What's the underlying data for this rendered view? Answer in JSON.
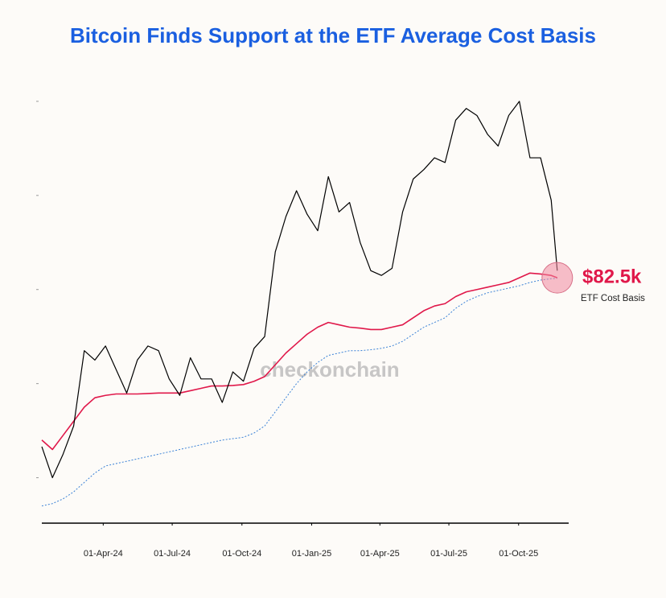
{
  "chart_data": {
    "type": "line",
    "title": "Bitcoin Finds Support at the ETF Average Cost Basis",
    "watermark": "checkonchain",
    "x": [
      "2024-01-11",
      "2024-01-25",
      "2024-02-08",
      "2024-02-22",
      "2024-03-07",
      "2024-03-21",
      "2024-04-04",
      "2024-04-18",
      "2024-05-02",
      "2024-05-16",
      "2024-05-30",
      "2024-06-13",
      "2024-06-27",
      "2024-07-11",
      "2024-07-25",
      "2024-08-08",
      "2024-08-22",
      "2024-09-05",
      "2024-09-19",
      "2024-10-03",
      "2024-10-17",
      "2024-10-31",
      "2024-11-14",
      "2024-11-28",
      "2024-12-12",
      "2024-12-26",
      "2025-01-09",
      "2025-01-23",
      "2025-02-06",
      "2025-02-20",
      "2025-03-06",
      "2025-03-20",
      "2025-04-03",
      "2025-04-17",
      "2025-05-01",
      "2025-05-15",
      "2025-05-29",
      "2025-06-12",
      "2025-06-26",
      "2025-07-10",
      "2025-07-24",
      "2025-08-07",
      "2025-08-21",
      "2025-09-04",
      "2025-09-18",
      "2025-10-02",
      "2025-10-16",
      "2025-10-30",
      "2025-11-13",
      "2025-11-21"
    ],
    "series": [
      {
        "color": "#000000",
        "style": "solid",
        "width": 1.2,
        "values": [
          46.6,
          40,
          45,
          51,
          67,
          65,
          68,
          63,
          58,
          65,
          68,
          67,
          61,
          57.5,
          65.5,
          61,
          61,
          56,
          62.5,
          60.5,
          67.5,
          70,
          88,
          95.5,
          101,
          96,
          92.5,
          104,
          96.5,
          98.5,
          90,
          84,
          83,
          84.5,
          96.5,
          103.5,
          105.5,
          108,
          107,
          116,
          118.5,
          117,
          113,
          110.5,
          117,
          120,
          108,
          108,
          99,
          84
        ]
      },
      {
        "color": "#e0184a",
        "style": "solid",
        "width": 1.6,
        "values": [
          48,
          46,
          49,
          52,
          55,
          57,
          57.5,
          57.8,
          57.8,
          57.8,
          57.9,
          58,
          58,
          58,
          58.5,
          59,
          59.5,
          59.5,
          59.6,
          59.8,
          60.5,
          61.5,
          64,
          66.5,
          68.5,
          70.5,
          72,
          73,
          72.5,
          72,
          71.8,
          71.5,
          71.5,
          72,
          72.5,
          74,
          75.5,
          76.5,
          77,
          78.5,
          79.5,
          80,
          80.5,
          81,
          81.5,
          82.5,
          83.5,
          83.3,
          83,
          82.5
        ]
      },
      {
        "color": "#3b82d6",
        "style": "dotted",
        "width": 1,
        "values": [
          34,
          34.5,
          35.5,
          37,
          39,
          41,
          42.5,
          43,
          43.5,
          44,
          44.5,
          45,
          45.5,
          46,
          46.5,
          47,
          47.5,
          48,
          48.3,
          48.6,
          49.5,
          51,
          54,
          57,
          60,
          62.5,
          64.5,
          66,
          66.5,
          67,
          67,
          67.2,
          67.5,
          68,
          69,
          70.5,
          72,
          73,
          74,
          76,
          77.5,
          78.5,
          79.3,
          79.8,
          80.3,
          80.8,
          81.5,
          82,
          82.3,
          82.4
        ]
      }
    ],
    "xlim": [
      "2024-01-11",
      "2025-12-05"
    ],
    "xticks": [
      {
        "value": "2024-04-01",
        "label": "01-Apr-24"
      },
      {
        "value": "2024-07-01",
        "label": "01-Jul-24"
      },
      {
        "value": "2024-10-01",
        "label": "01-Oct-24"
      },
      {
        "value": "2025-01-01",
        "label": "01-Jan-25"
      },
      {
        "value": "2025-04-01",
        "label": "01-Apr-25"
      },
      {
        "value": "2025-07-01",
        "label": "01-Jul-25"
      },
      {
        "value": "2025-10-01",
        "label": "01-Oct-25"
      }
    ],
    "ylim": [
      30,
      127
    ],
    "yticks": [
      40,
      60,
      80,
      100,
      120
    ],
    "annotation": {
      "x": "2025-11-21",
      "value": 82.5,
      "label": "$82.5k",
      "note": "ETF Cost Basis"
    }
  }
}
